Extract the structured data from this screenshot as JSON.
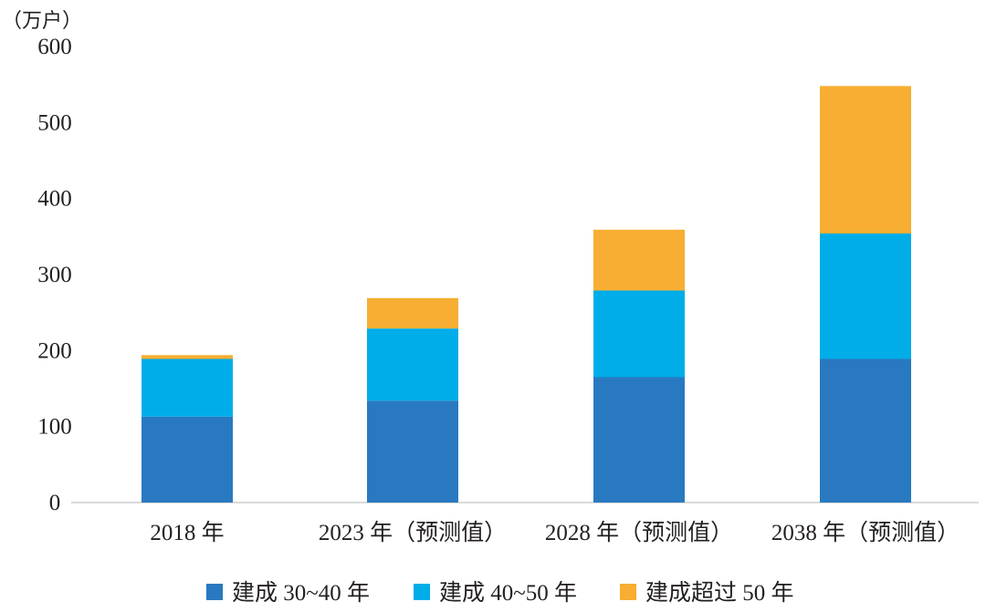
{
  "chart_data": {
    "type": "bar",
    "stacked": true,
    "y_unit_label": "（万户）",
    "categories": [
      "2018 年",
      "2023 年（预测值）",
      "2028 年（预测值）",
      "2038 年（预测值）"
    ],
    "series": [
      {
        "name": "建成 30~40 年",
        "color": "#2979c1",
        "values": [
          113,
          134,
          165,
          189
        ]
      },
      {
        "name": "建成 40~50 年",
        "color": "#00ade8",
        "values": [
          76,
          95,
          114,
          165
        ]
      },
      {
        "name": "建成超过 50 年",
        "color": "#f7ae32",
        "values": [
          5,
          40,
          80,
          194
        ]
      }
    ],
    "yticks": [
      "0",
      "100",
      "200",
      "300",
      "400",
      "500",
      "600"
    ],
    "ylim": [
      0,
      600
    ],
    "grid": false,
    "legend_position": "bottom"
  }
}
